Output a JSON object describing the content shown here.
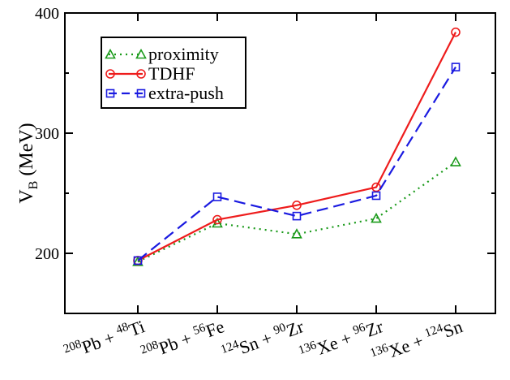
{
  "chart_data": {
    "type": "line",
    "ylabel": {
      "main": "V",
      "sub": "B",
      "unit": " (MeV)"
    },
    "ylim": [
      150,
      400
    ],
    "yticks": [
      200,
      300,
      400
    ],
    "categories": [
      {
        "m1": "208",
        "e1": "Pb",
        "m2": "48",
        "e2": "Ti"
      },
      {
        "m1": "208",
        "e1": "Pb",
        "m2": "56",
        "e2": "Fe"
      },
      {
        "m1": "124",
        "e1": "Sn",
        "m2": "90",
        "e2": "Zr"
      },
      {
        "m1": "136",
        "e1": "Xe",
        "m2": "96",
        "e2": "Zr"
      },
      {
        "m1": "136",
        "e1": "Xe",
        "m2": "124",
        "e2": "Sn"
      }
    ],
    "grid": false,
    "legend_position": "top-left",
    "series": [
      {
        "name": "proximity",
        "color": "#1a9a1a",
        "marker": "triangle",
        "dash": "dotted",
        "values": [
          193,
          225,
          216,
          229,
          276
        ]
      },
      {
        "name": "TDHF",
        "color": "#ee1c1c",
        "marker": "circle",
        "dash": "solid",
        "values": [
          194,
          228,
          240,
          255,
          384
        ]
      },
      {
        "name": "extra-push",
        "color": "#1a1ae0",
        "marker": "square",
        "dash": "dashed",
        "values": [
          194,
          247,
          231,
          248,
          355
        ]
      }
    ]
  }
}
